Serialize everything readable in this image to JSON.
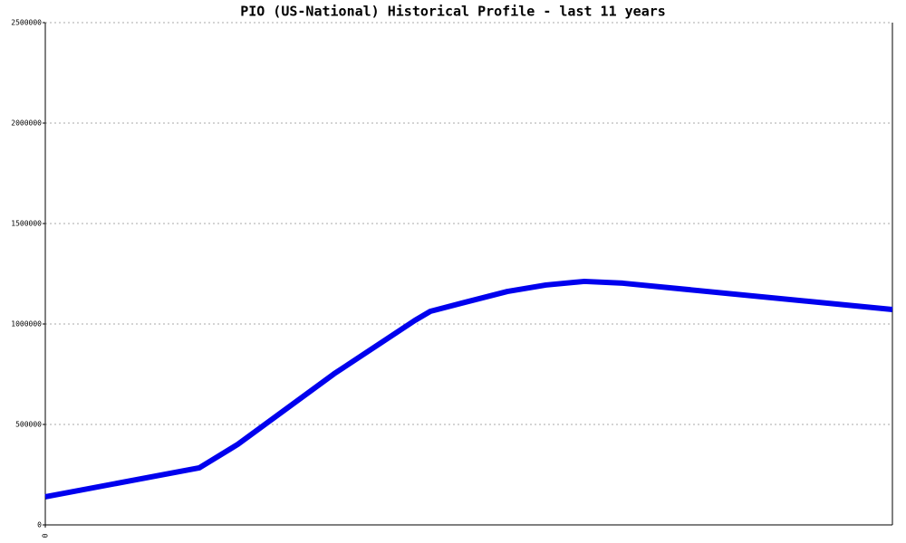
{
  "chart_data": {
    "type": "line",
    "title": "PIO (US-National) Historical Profile - last 11 years",
    "x": [
      0,
      2,
      2.5,
      3.75,
      4.8,
      5,
      5.5,
      6,
      6.5,
      7,
      7.5,
      11
    ],
    "series": [
      {
        "color": "#0000ee",
        "values": [
          140000,
          284000,
          401000,
          752000,
          1018000,
          1063000,
          1113000,
          1162000,
          1194000,
          1212000,
          1203000,
          1072000
        ]
      }
    ],
    "xlim": [
      0,
      11
    ],
    "xticks": [
      0
    ],
    "ylim": [
      0,
      2500000
    ],
    "yticks": [
      0,
      500000,
      1000000,
      1500000,
      2000000,
      2500000
    ],
    "grid": true
  }
}
